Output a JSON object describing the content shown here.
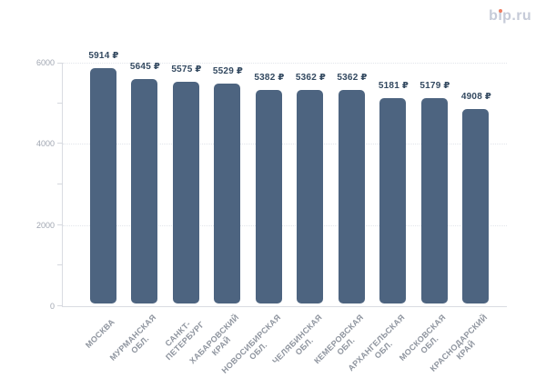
{
  "logo": {
    "text": "bip.ru",
    "part_b": "b",
    "part_i": "ı",
    "part_rest": "p.ru",
    "text_color": "#c6cbd8",
    "dot_color": "#ee7e62"
  },
  "chart_data": {
    "type": "bar",
    "title": "",
    "xlabel": "",
    "ylabel": "",
    "categories": [
      "МОСКВА",
      "МУРМАНСКАЯ ОБЛ.",
      "САНКТ-ПЕТЕРБУРГ",
      "ХАБАРОВСКИЙ КРАЙ",
      "НОВОСИБИРСКАЯ ОБЛ.",
      "ЧЕЛЯБИНСКАЯ ОБЛ.",
      "КЕМЕРОВСКАЯ ОБЛ.",
      "АРХАНГЕЛЬСКАЯ ОБЛ.",
      "МОСКОВСКАЯ ОБЛ.",
      "КРАСНОДАРСКИЙ КРАЙ"
    ],
    "category_lines": [
      [
        "МОСКВА"
      ],
      [
        "МУРМАНСКАЯ",
        "ОБЛ."
      ],
      [
        "САНКТ-",
        "ПЕТЕРБУРГ"
      ],
      [
        "ХАБАРОВСКИЙ",
        "КРАЙ"
      ],
      [
        "НОВОСИБИРСКАЯ",
        "ОБЛ."
      ],
      [
        "ЧЕЛЯБИНСКАЯ",
        "ОБЛ."
      ],
      [
        "КЕМЕРОВСКАЯ",
        "ОБЛ."
      ],
      [
        "АРХАНГЕЛЬСКАЯ",
        "ОБЛ."
      ],
      [
        "МОСКОВСКАЯ",
        "ОБЛ."
      ],
      [
        "КРАСНОДАРСКИЙ",
        "КРАЙ"
      ]
    ],
    "values": [
      5914,
      5645,
      5575,
      5529,
      5382,
      5362,
      5362,
      5181,
      5179,
      4908
    ],
    "value_labels": [
      "5914 ₽",
      "5645 ₽",
      "5575 ₽",
      "5529 ₽",
      "5382 ₽",
      "5362 ₽",
      "5362 ₽",
      "5181 ₽",
      "5179 ₽",
      "4908 ₽"
    ],
    "value_suffix": " ₽",
    "ylim": [
      0,
      6000
    ],
    "yticks": [
      0,
      2000,
      4000,
      6000
    ],
    "y_minor_step": 1000,
    "grid": "dotted horizontal lines at major y ticks",
    "legend": "none",
    "bar_color": "#4d6480",
    "value_label_color": "#334960",
    "x_label_color": "#8f959f",
    "y_label_color": "#a0a6b1"
  }
}
